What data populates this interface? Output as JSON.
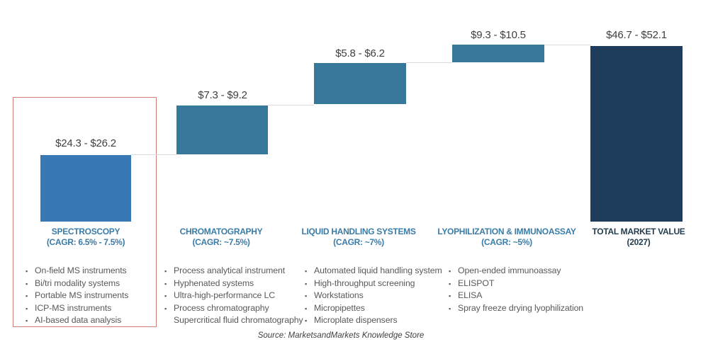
{
  "source_note": "Source: MarketsandMarkets Knowledge Store",
  "colors": {
    "bar_spectroscopy": "#3778B5",
    "bar_mid": "#37789B",
    "bar_total": "#1E3D5C",
    "header_text": "#3A7CA8",
    "total_header_text": "#233D4E",
    "connector_line": "#DBDBDB",
    "highlight_border": "#CE7F77",
    "value_text": "#3F3F3F",
    "bullet_text": "#595959"
  },
  "chart_data": {
    "type": "bar",
    "subtype": "waterfall",
    "title": "",
    "categories": [
      "SPECTROSCOPY",
      "CHROMATOGRAPHY",
      "LIQUID HANDLING SYSTEMS",
      "LYOPHILIZATION & IMMUNOASSAY",
      "TOTAL MARKET VALUE"
    ],
    "legend": "none",
    "grid": "off",
    "segments": [
      {
        "name": "SPECTROSCOPY",
        "cagr_label": "(CAGR: 6.5% - 7.5%)",
        "value_label": "$24.3 - $26.2",
        "value_low": 24.3,
        "value_high": 26.2,
        "role": "segment",
        "highlighted": true,
        "items": [
          "On-field MS instruments",
          "Bi/tri modality systems",
          "Portable MS instruments",
          "ICP-MS instruments",
          "AI-based data analysis"
        ]
      },
      {
        "name": "CHROMATOGRAPHY",
        "cagr_label": "(CAGR: ~7.5%)",
        "value_label": "$7.3 - $9.2",
        "value_low": 7.3,
        "value_high": 9.2,
        "role": "segment",
        "highlighted": false,
        "items": [
          "Process analytical instrument",
          "Hyphenated systems",
          "Ultra-high-performance LC",
          "Process chromatography",
          {
            "text": "Supercritical fluid chromatography",
            "bullet": false
          }
        ]
      },
      {
        "name": "LIQUID HANDLING SYSTEMS",
        "cagr_label": "(CAGR: ~7%)",
        "value_label": "$5.8 - $6.2",
        "value_low": 5.8,
        "value_high": 6.2,
        "role": "segment",
        "highlighted": false,
        "items": [
          "Automated liquid handling system",
          "High-throughput screening",
          "Workstations",
          "Micropipettes",
          "Microplate dispensers"
        ]
      },
      {
        "name": "LYOPHILIZATION & IMMUNOASSAY",
        "cagr_label": "(CAGR: ~5%)",
        "value_label": "$9.3 - $10.5",
        "value_low": 9.3,
        "value_high": 10.5,
        "role": "segment",
        "highlighted": false,
        "items": [
          "Open-ended immunoassay",
          "ELISPOT",
          "ELISA",
          "Spray freeze drying lyophilization"
        ]
      },
      {
        "name": "TOTAL MARKET VALUE",
        "cagr_label": "(2027)",
        "value_label": "$46.7 - $52.1",
        "value_low": 46.7,
        "value_high": 52.1,
        "role": "total",
        "highlighted": false,
        "items": []
      }
    ]
  }
}
